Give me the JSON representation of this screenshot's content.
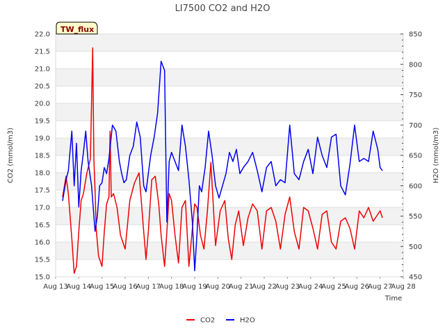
{
  "chart_data": {
    "type": "line",
    "title": "LI7500 CO2 and H2O",
    "site_label": "TW_flux",
    "xlabel": "Time",
    "ylabel_left": "CO2 (mmol/m3)",
    "ylabel_right": "H2O (mmol/m3)",
    "x_ticks": [
      "Aug 13",
      "Aug 14",
      "Aug 15",
      "Aug 16",
      "Aug 17",
      "Aug 18",
      "Aug 19",
      "Aug 20",
      "Aug 21",
      "Aug 22",
      "Aug 23",
      "Aug 24",
      "Aug 25",
      "Aug 26",
      "Aug 27",
      "Aug 28"
    ],
    "xlim": [
      13,
      28
    ],
    "ylim_left": [
      15.0,
      22.0
    ],
    "ylim_right": [
      450,
      850
    ],
    "left_ticks": [
      "15.0",
      "15.5",
      "16.0",
      "16.5",
      "17.0",
      "17.5",
      "18.0",
      "18.5",
      "19.0",
      "19.5",
      "20.0",
      "20.5",
      "21.0",
      "21.5",
      "22.0"
    ],
    "right_ticks": [
      "450",
      "500",
      "550",
      "600",
      "650",
      "700",
      "750",
      "800",
      "850"
    ],
    "series": [
      {
        "name": "CO2",
        "axis": "left",
        "color": "#ee0000",
        "x": [
          13.3,
          13.45,
          13.55,
          13.7,
          13.8,
          13.9,
          14.0,
          14.1,
          14.2,
          14.35,
          14.5,
          14.6,
          14.65,
          14.7,
          14.75,
          14.85,
          15.0,
          15.1,
          15.2,
          15.3,
          15.35,
          15.4,
          15.5,
          15.65,
          15.8,
          16.0,
          16.2,
          16.4,
          16.6,
          16.8,
          16.9,
          17.0,
          17.15,
          17.3,
          17.45,
          17.55,
          17.7,
          17.8,
          17.9,
          18.0,
          18.15,
          18.3,
          18.45,
          18.6,
          18.75,
          18.9,
          19.0,
          19.1,
          19.25,
          19.4,
          19.55,
          19.7,
          19.9,
          20.1,
          20.3,
          20.45,
          20.6,
          20.75,
          20.9,
          21.1,
          21.3,
          21.5,
          21.7,
          21.9,
          22.1,
          22.3,
          22.5,
          22.7,
          22.9,
          23.1,
          23.3,
          23.5,
          23.7,
          23.9,
          24.1,
          24.3,
          24.5,
          24.7,
          24.9,
          25.1,
          25.3,
          25.5,
          25.7,
          25.9,
          26.1,
          26.3,
          26.5,
          26.7,
          26.9,
          27.0,
          27.1
        ],
        "y": [
          17.3,
          17.9,
          17.4,
          16.1,
          15.1,
          15.3,
          16.3,
          17.2,
          17.4,
          18.0,
          18.4,
          21.6,
          18.4,
          17.5,
          16.4,
          15.6,
          15.3,
          16.3,
          17.1,
          17.3,
          19.2,
          17.3,
          17.4,
          17.0,
          16.2,
          15.8,
          17.2,
          17.7,
          18.0,
          16.3,
          15.5,
          16.3,
          17.8,
          17.9,
          17.1,
          16.2,
          15.3,
          16.3,
          17.4,
          17.2,
          16.2,
          15.4,
          17.0,
          17.2,
          15.3,
          16.4,
          17.1,
          17.0,
          16.2,
          15.8,
          16.9,
          18.3,
          15.9,
          16.9,
          17.2,
          16.1,
          15.5,
          16.5,
          16.9,
          15.9,
          16.7,
          17.1,
          16.9,
          15.8,
          16.9,
          17.0,
          16.6,
          15.8,
          16.8,
          17.3,
          16.3,
          15.8,
          17.0,
          16.9,
          16.4,
          15.8,
          16.8,
          16.9,
          16.0,
          15.8,
          16.6,
          16.7,
          16.4,
          15.8,
          16.9,
          16.7,
          17.0,
          16.6,
          16.8,
          16.9,
          16.7
        ]
      },
      {
        "name": "H2O",
        "axis": "right",
        "color": "#0000ee",
        "x": [
          13.3,
          13.45,
          13.55,
          13.7,
          13.8,
          13.9,
          14.0,
          14.1,
          14.2,
          14.3,
          14.4,
          14.55,
          14.7,
          14.8,
          14.9,
          15.0,
          15.1,
          15.2,
          15.3,
          15.45,
          15.6,
          15.75,
          15.85,
          15.95,
          16.05,
          16.2,
          16.35,
          16.5,
          16.65,
          16.8,
          16.9,
          17.0,
          17.1,
          17.25,
          17.4,
          17.55,
          17.7,
          17.8,
          17.9,
          18.0,
          18.15,
          18.3,
          18.45,
          18.6,
          18.75,
          18.9,
          19.0,
          19.1,
          19.2,
          19.3,
          19.45,
          19.6,
          19.75,
          19.9,
          20.05,
          20.2,
          20.35,
          20.5,
          20.65,
          20.8,
          20.95,
          21.1,
          21.3,
          21.5,
          21.7,
          21.9,
          22.1,
          22.3,
          22.5,
          22.7,
          22.9,
          23.1,
          23.3,
          23.5,
          23.7,
          23.9,
          24.1,
          24.3,
          24.5,
          24.7,
          24.9,
          25.1,
          25.3,
          25.5,
          25.7,
          25.9,
          26.1,
          26.3,
          26.5,
          26.7,
          26.9,
          27.0,
          27.1
        ],
        "y": [
          575,
          610,
          625,
          690,
          600,
          670,
          565,
          625,
          655,
          690,
          640,
          600,
          525,
          550,
          600,
          605,
          630,
          620,
          645,
          700,
          690,
          640,
          620,
          605,
          610,
          650,
          665,
          705,
          680,
          600,
          590,
          620,
          650,
          680,
          720,
          805,
          790,
          540,
          640,
          655,
          640,
          625,
          700,
          665,
          610,
          540,
          460,
          520,
          600,
          590,
          630,
          690,
          650,
          600,
          580,
          600,
          620,
          655,
          640,
          660,
          620,
          630,
          640,
          655,
          625,
          590,
          630,
          640,
          600,
          610,
          605,
          700,
          620,
          610,
          640,
          660,
          620,
          680,
          650,
          630,
          680,
          685,
          600,
          585,
          635,
          700,
          640,
          645,
          640,
          690,
          660,
          630,
          625
        ]
      }
    ],
    "legend": [
      {
        "name": "CO2",
        "color": "#ee0000"
      },
      {
        "name": "H2O",
        "color": "#0000ee"
      }
    ]
  }
}
